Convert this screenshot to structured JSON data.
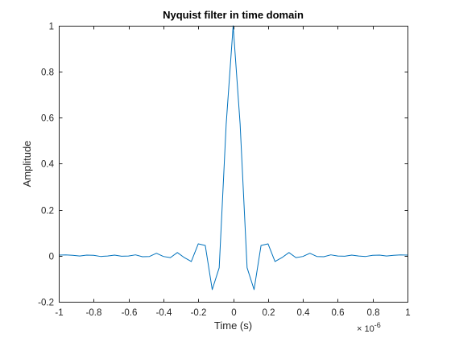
{
  "chart_data": {
    "type": "line",
    "title": "Nyquist filter in time domain",
    "xlabel": "Time (s)",
    "ylabel": "Amplitude",
    "x_exponent_label": "× 10",
    "x_exponent_power": "-6",
    "xlim": [
      -1e-06,
      1e-06
    ],
    "ylim": [
      -0.2,
      1
    ],
    "grid": false,
    "x_ticks": [
      -1e-06,
      -8e-07,
      -6e-07,
      -4e-07,
      -2e-07,
      0,
      2e-07,
      4e-07,
      6e-07,
      8e-07,
      1e-06
    ],
    "x_tick_labels": [
      "-1",
      "-0.8",
      "-0.6",
      "-0.4",
      "-0.2",
      "0",
      "0.2",
      "0.4",
      "0.6",
      "0.8",
      "1"
    ],
    "y_ticks": [
      -0.2,
      0,
      0.2,
      0.4,
      0.6,
      0.8,
      1
    ],
    "y_tick_labels": [
      "-0.2",
      "0",
      "0.2",
      "0.4",
      "0.6",
      "0.8",
      "1"
    ],
    "series": [
      {
        "color": "#0072BD",
        "x": [
          -1e-06,
          -9.6e-07,
          -9.2e-07,
          -8.8e-07,
          -8.4e-07,
          -8e-07,
          -7.6e-07,
          -7.2e-07,
          -6.8e-07,
          -6.4e-07,
          -6e-07,
          -5.6e-07,
          -5.2e-07,
          -4.8e-07,
          -4.4e-07,
          -4e-07,
          -3.6e-07,
          -3.2e-07,
          -2.8e-07,
          -2.4e-07,
          -2e-07,
          -1.6e-07,
          -1.2e-07,
          -8e-08,
          -4e-08,
          0,
          4e-08,
          8e-08,
          1.2e-07,
          1.6e-07,
          2e-07,
          2.4e-07,
          2.8e-07,
          3.2e-07,
          3.6e-07,
          4e-07,
          4.4e-07,
          4.8e-07,
          5.2e-07,
          5.6e-07,
          6e-07,
          6.4e-07,
          6.8e-07,
          7.2e-07,
          7.6e-07,
          8e-07,
          8.4e-07,
          8.8e-07,
          9.2e-07,
          9.6e-07,
          1e-06
        ],
        "y": [
          0.003,
          0.004,
          0.002,
          -0.001,
          0.003,
          0.002,
          -0.003,
          -0.001,
          0.003,
          -0.002,
          -0.001,
          0.004,
          -0.004,
          -0.003,
          0.011,
          -0.003,
          -0.008,
          0.014,
          -0.008,
          -0.025,
          0.052,
          0.045,
          -0.147,
          -0.052,
          0.572,
          1.0,
          0.572,
          -0.052,
          -0.147,
          0.045,
          0.052,
          -0.025,
          -0.008,
          0.014,
          -0.008,
          -0.003,
          0.011,
          -0.003,
          -0.004,
          0.004,
          -0.001,
          -0.002,
          0.003,
          -0.001,
          -0.003,
          0.002,
          0.003,
          -0.001,
          0.002,
          0.004,
          0.003
        ]
      }
    ]
  }
}
